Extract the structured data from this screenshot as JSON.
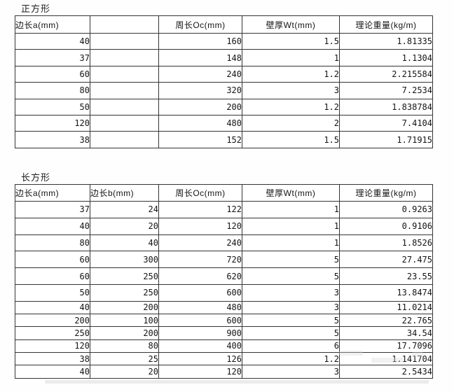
{
  "page": {
    "background": "#fefefe",
    "text_color": "#141414",
    "border_color": "#353535"
  },
  "tables": [
    {
      "title": "正方形",
      "headers": [
        "边长a(mm)",
        "",
        "周长Oc(mm)",
        "壁厚Wt(mm)",
        "理论重量(kg/m)"
      ],
      "rows": [
        [
          "40",
          "",
          "160",
          "1.5",
          "1.81335"
        ],
        [
          "37",
          "",
          "148",
          "1",
          "1.1304"
        ],
        [
          "60",
          "",
          "240",
          "1.2",
          "2.215584"
        ],
        [
          "80",
          "",
          "320",
          "3",
          "7.2534"
        ],
        [
          "50",
          "",
          "200",
          "1.2",
          "1.838784"
        ],
        [
          "120",
          "",
          "480",
          "2",
          "7.4104"
        ],
        [
          "38",
          "",
          "152",
          "1.5",
          "1.71915"
        ]
      ]
    },
    {
      "title": "长方形",
      "headers": [
        "边长a(mm)",
        "边长b(mm)",
        "周长Oc(mm)",
        "壁厚Wt(mm)",
        "理论重量(kg/m)"
      ],
      "rows": [
        [
          "37",
          "24",
          "122",
          "1",
          "0.9263"
        ],
        [
          "40",
          "20",
          "120",
          "1",
          "0.9106"
        ],
        [
          "80",
          "40",
          "240",
          "1",
          "1.8526"
        ],
        [
          "60",
          "300",
          "720",
          "5",
          "27.475"
        ],
        [
          "60",
          "250",
          "620",
          "5",
          "23.55"
        ],
        [
          "50",
          "250",
          "600",
          "3",
          "13.8474"
        ],
        [
          "40",
          "200",
          "480",
          "3",
          "11.0214"
        ],
        [
          "200",
          "100",
          "600",
          "5",
          "22.765"
        ],
        [
          "250",
          "200",
          "900",
          "5",
          "34.54"
        ],
        [
          "120",
          "80",
          "400",
          "6",
          "17.7096"
        ],
        [
          "38",
          "25",
          "126",
          "1.2",
          "1.141704"
        ],
        [
          "40",
          "20",
          "120",
          "3",
          "2.5434"
        ]
      ]
    }
  ]
}
